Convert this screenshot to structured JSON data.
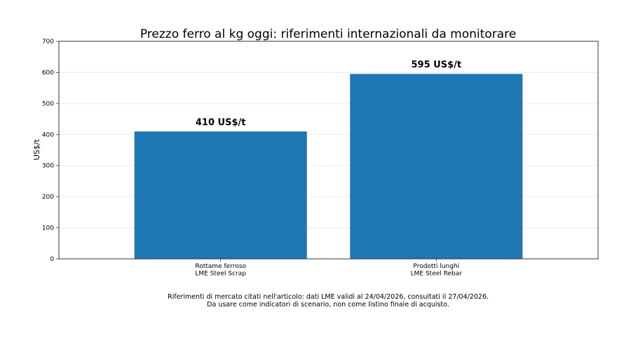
{
  "chart_data": {
    "type": "bar",
    "title": "Prezzo ferro al kg oggi: riferimenti internazionali da monitorare",
    "xlabel": "",
    "ylabel": "US$/t",
    "ylim": [
      0,
      700
    ],
    "yticks": [
      0,
      100,
      200,
      300,
      400,
      500,
      600,
      700
    ],
    "grid": "horizontal",
    "categories": [
      [
        "Rottame ferroso",
        "LME Steel Scrap"
      ],
      [
        "Prodotti lunghi",
        "LME Steel Rebar"
      ]
    ],
    "values": [
      410,
      595
    ],
    "data_labels": [
      "410 US$/t",
      "595 US$/t"
    ],
    "bar_color": "#1f77b4"
  },
  "footnote": [
    "Riferimenti di mercato citati nell'articolo: dati LME validi al 24/04/2026, consultati il 27/04/2026.",
    "Da usare come indicatori di scenario, non come listino finale di acquisto."
  ]
}
